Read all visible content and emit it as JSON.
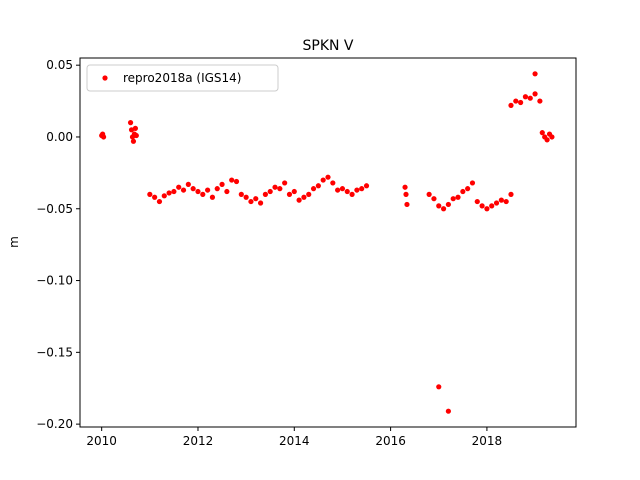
{
  "chart_data": {
    "type": "scatter",
    "title": "SPKN V",
    "xlabel": "",
    "ylabel": "m",
    "xlim": [
      2009.55,
      2019.85
    ],
    "ylim": [
      -0.202,
      0.055
    ],
    "xticks": [
      2010,
      2012,
      2014,
      2016,
      2018
    ],
    "xtick_labels": [
      "2010",
      "2012",
      "2014",
      "2016",
      "2018"
    ],
    "yticks": [
      0.05,
      0.0,
      -0.05,
      -0.1,
      -0.15,
      -0.2
    ],
    "ytick_labels": [
      "0.05",
      "0.00",
      "−0.05",
      "−0.10",
      "−0.15",
      "−0.20"
    ],
    "grid": false,
    "legend_position": "top-left",
    "series": [
      {
        "name": "repro2018a (IGS14)",
        "color": "#ff0000",
        "marker": "circle",
        "x": [
          2010.0,
          2010.02,
          2010.04,
          2010.6,
          2010.62,
          2010.64,
          2010.66,
          2010.68,
          2010.7,
          2010.72,
          2011.0,
          2011.1,
          2011.2,
          2011.3,
          2011.4,
          2011.5,
          2011.6,
          2011.7,
          2011.8,
          2011.9,
          2012.0,
          2012.1,
          2012.2,
          2012.3,
          2012.4,
          2012.5,
          2012.6,
          2012.7,
          2012.8,
          2012.9,
          2013.0,
          2013.1,
          2013.2,
          2013.3,
          2013.4,
          2013.5,
          2013.6,
          2013.7,
          2013.8,
          2013.9,
          2014.0,
          2014.1,
          2014.2,
          2014.3,
          2014.4,
          2014.5,
          2014.6,
          2014.7,
          2014.8,
          2014.9,
          2015.0,
          2015.1,
          2015.2,
          2015.3,
          2015.4,
          2015.5,
          2016.3,
          2016.32,
          2016.34,
          2016.8,
          2016.9,
          2017.0,
          2017.1,
          2017.2,
          2017.3,
          2017.4,
          2017.5,
          2017.6,
          2017.7,
          2017.8,
          2017.9,
          2018.0,
          2018.1,
          2018.2,
          2018.3,
          2018.4,
          2018.5,
          2018.5,
          2018.6,
          2018.7,
          2018.8,
          2018.9,
          2019.0,
          2019.1,
          2019.15,
          2019.2,
          2019.25,
          2019.3,
          2019.35,
          2017.0,
          2017.2,
          2019.0
        ],
        "y": [
          0.001,
          0.002,
          0.0,
          0.01,
          0.005,
          0.0,
          -0.003,
          0.002,
          0.006,
          0.001,
          -0.04,
          -0.042,
          -0.045,
          -0.041,
          -0.039,
          -0.038,
          -0.035,
          -0.037,
          -0.033,
          -0.036,
          -0.038,
          -0.04,
          -0.037,
          -0.042,
          -0.036,
          -0.033,
          -0.038,
          -0.03,
          -0.031,
          -0.04,
          -0.042,
          -0.045,
          -0.043,
          -0.046,
          -0.04,
          -0.038,
          -0.035,
          -0.036,
          -0.032,
          -0.04,
          -0.038,
          -0.044,
          -0.042,
          -0.04,
          -0.036,
          -0.034,
          -0.03,
          -0.028,
          -0.032,
          -0.037,
          -0.036,
          -0.038,
          -0.04,
          -0.037,
          -0.036,
          -0.034,
          -0.035,
          -0.04,
          -0.047,
          -0.04,
          -0.043,
          -0.048,
          -0.05,
          -0.047,
          -0.043,
          -0.042,
          -0.038,
          -0.036,
          -0.032,
          -0.045,
          -0.048,
          -0.05,
          -0.048,
          -0.046,
          -0.044,
          -0.045,
          -0.04,
          0.022,
          0.025,
          0.024,
          0.028,
          0.027,
          0.03,
          0.025,
          0.003,
          0.0,
          -0.002,
          0.002,
          0.0,
          -0.174,
          -0.191,
          0.044
        ]
      }
    ]
  }
}
